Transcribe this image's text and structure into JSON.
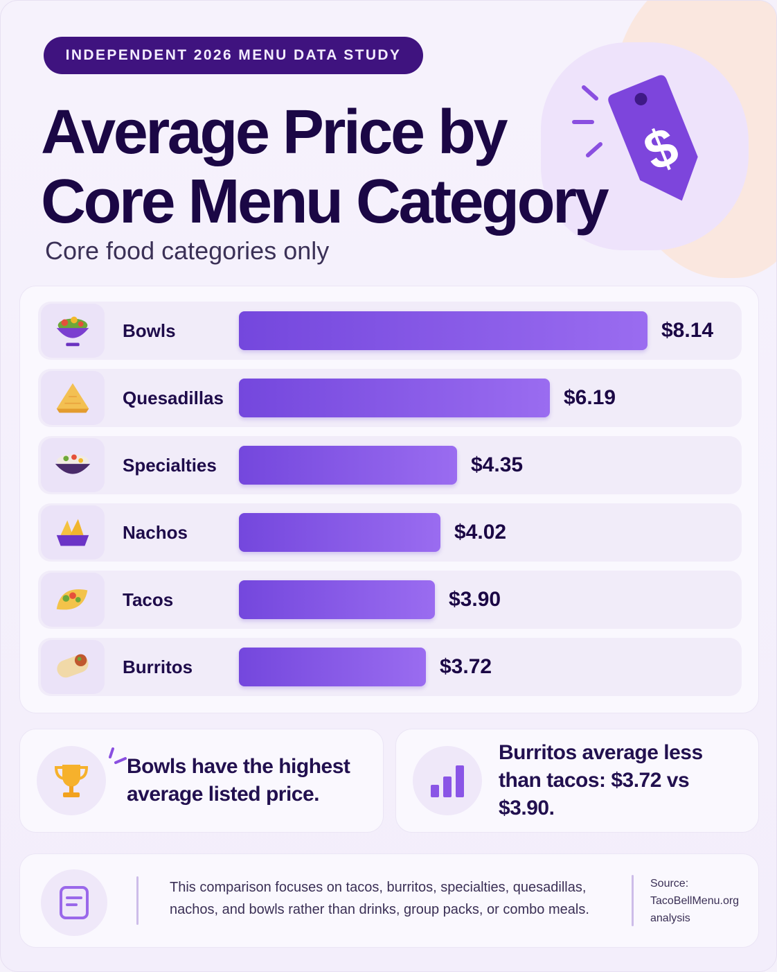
{
  "badge": "INDEPENDENT 2026 MENU DATA STUDY",
  "header": {
    "title_line1": "Average Price by",
    "title_line2": "Core Menu Category",
    "subtitle": "Core food categories only",
    "illustration_icon": "price-tag-dollar-icon"
  },
  "colors": {
    "accent": "#7b4fe0",
    "badge_bg": "#3f137f",
    "title": "#1b0745",
    "peach_blob": "#fbe6db"
  },
  "chart_data": {
    "type": "bar",
    "orientation": "horizontal",
    "categories": [
      "Bowls",
      "Quesadillas",
      "Specialties",
      "Nachos",
      "Tacos",
      "Burritos"
    ],
    "values": [
      8.14,
      6.19,
      4.35,
      4.02,
      3.9,
      3.72
    ],
    "value_labels": [
      "$8.14",
      "$6.19",
      "$4.35",
      "$4.02",
      "$3.90",
      "$3.72"
    ],
    "icons": [
      "bowl-icon",
      "quesadilla-icon",
      "specialty-bowl-icon",
      "nachos-icon",
      "taco-icon",
      "burrito-icon"
    ],
    "xlim": [
      0,
      8.14
    ],
    "grid": false
  },
  "insights": [
    {
      "icon": "trophy-icon",
      "text": "Bowls have the highest average listed price."
    },
    {
      "icon": "bar-chart-icon",
      "text": "Burritos average less than tacos: $3.72 vs $3.90."
    }
  ],
  "footer": {
    "icon": "document-icon",
    "note": "This comparison focuses on tacos, burritos, specialties, quesadillas, nachos, and bowls rather than drinks, group packs, or combo meals.",
    "source_label": "Source:",
    "source_name": "TacoBellMenu.org",
    "source_suffix": "analysis"
  }
}
